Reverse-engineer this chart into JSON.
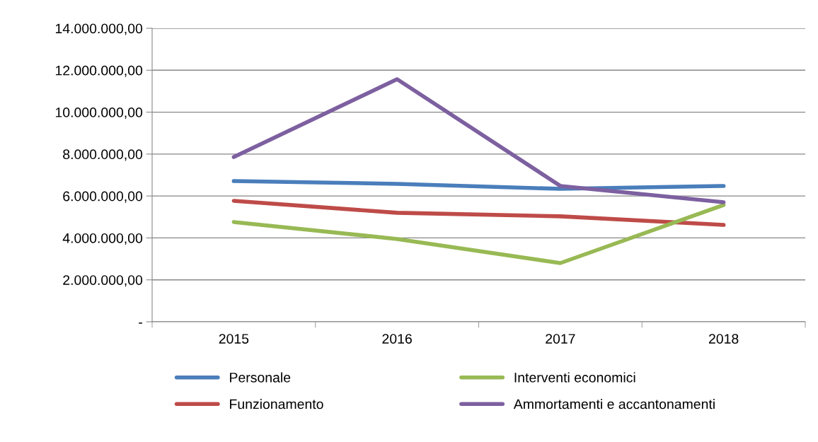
{
  "chart_data": {
    "type": "line",
    "categories": [
      "2015",
      "2016",
      "2017",
      "2018"
    ],
    "series": [
      {
        "name": "Personale",
        "color": "#4a7ebb",
        "values": [
          6710000,
          6580000,
          6340000,
          6480000
        ]
      },
      {
        "name": "Funzionamento",
        "color": "#be4b48",
        "values": [
          5770000,
          5200000,
          5030000,
          4620000
        ]
      },
      {
        "name": "Interventi economici",
        "color": "#98b954",
        "values": [
          4760000,
          3950000,
          2800000,
          5570000
        ]
      },
      {
        "name": "Ammortamenti e accantonamenti",
        "color": "#7d60a0",
        "values": [
          7860000,
          11570000,
          6480000,
          5700000
        ]
      }
    ],
    "ylim": [
      0,
      14000000
    ],
    "yticks": [
      {
        "value": 0,
        "label": "-"
      },
      {
        "value": 2000000,
        "label": "2.000.000,00"
      },
      {
        "value": 4000000,
        "label": "4.000.000,00"
      },
      {
        "value": 6000000,
        "label": "6.000.000,00"
      },
      {
        "value": 8000000,
        "label": "8.000.000,00"
      },
      {
        "value": 10000000,
        "label": "10.000.000,00"
      },
      {
        "value": 12000000,
        "label": "12.000.000,00"
      },
      {
        "value": 14000000,
        "label": "14.000.000,00"
      }
    ],
    "grid": "y",
    "legend": "bottom",
    "marker": "none",
    "line_style": "solid"
  }
}
